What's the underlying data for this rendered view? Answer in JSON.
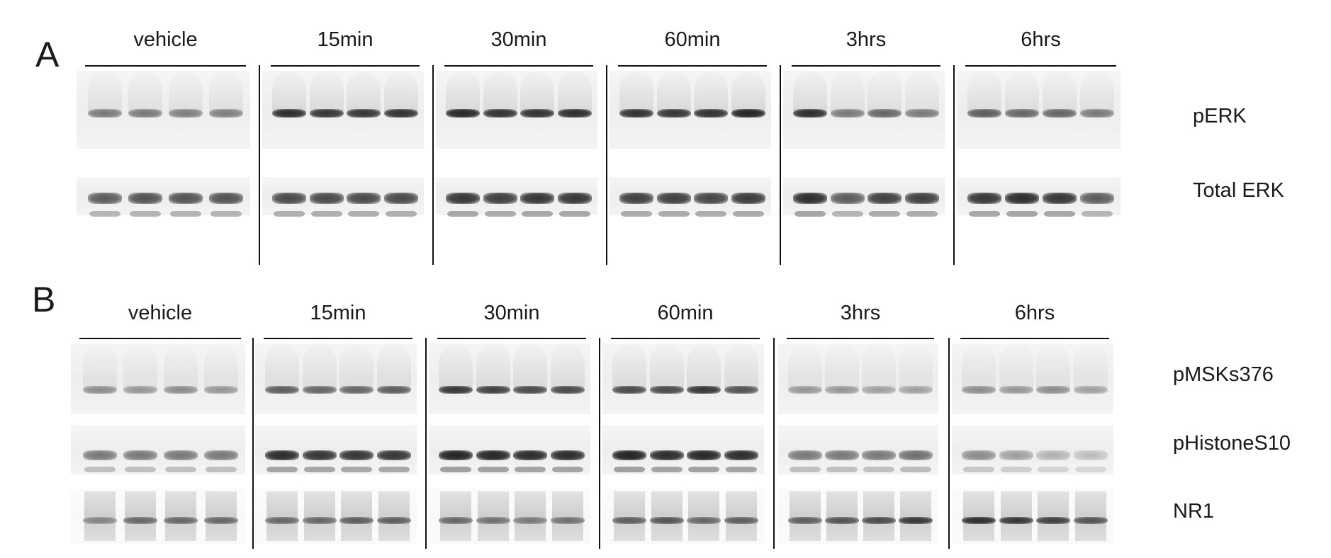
{
  "panels": [
    {
      "letter": "A",
      "groups": [
        "vehicle",
        "15min",
        "30min",
        "60min",
        "3hrs",
        "6hrs"
      ],
      "rows": [
        {
          "label": "pERK",
          "intensity": [
            [
              0.45,
              0.45,
              0.42,
              0.42
            ],
            [
              0.85,
              0.8,
              0.8,
              0.82
            ],
            [
              0.88,
              0.82,
              0.82,
              0.85
            ],
            [
              0.82,
              0.8,
              0.82,
              0.9
            ],
            [
              0.85,
              0.45,
              0.55,
              0.45
            ],
            [
              0.6,
              0.55,
              0.55,
              0.45
            ]
          ]
        },
        {
          "label": "Total ERK",
          "intensity": [
            [
              0.6,
              0.65,
              0.65,
              0.65
            ],
            [
              0.7,
              0.7,
              0.7,
              0.7
            ],
            [
              0.8,
              0.75,
              0.8,
              0.8
            ],
            [
              0.75,
              0.75,
              0.72,
              0.78
            ],
            [
              0.85,
              0.6,
              0.75,
              0.75
            ],
            [
              0.8,
              0.85,
              0.8,
              0.6
            ]
          ]
        }
      ]
    },
    {
      "letter": "B",
      "groups": [
        "vehicle",
        "15min",
        "30min",
        "60min",
        "3hrs",
        "6hrs"
      ],
      "rows": [
        {
          "label": "pMSKs376",
          "intensity": [
            [
              0.35,
              0.3,
              0.35,
              0.3
            ],
            [
              0.6,
              0.55,
              0.55,
              0.6
            ],
            [
              0.8,
              0.75,
              0.7,
              0.7
            ],
            [
              0.7,
              0.7,
              0.8,
              0.65
            ],
            [
              0.3,
              0.3,
              0.25,
              0.25
            ],
            [
              0.35,
              0.3,
              0.35,
              0.25
            ]
          ]
        },
        {
          "label": "pHistoneS10",
          "intensity": [
            [
              0.45,
              0.45,
              0.45,
              0.45
            ],
            [
              0.85,
              0.8,
              0.8,
              0.8
            ],
            [
              0.9,
              0.88,
              0.85,
              0.85
            ],
            [
              0.9,
              0.85,
              0.88,
              0.85
            ],
            [
              0.45,
              0.45,
              0.45,
              0.5
            ],
            [
              0.35,
              0.25,
              0.15,
              0.1
            ]
          ]
        },
        {
          "label": "NR1",
          "intensity": [
            [
              0.4,
              0.55,
              0.55,
              0.55
            ],
            [
              0.55,
              0.55,
              0.6,
              0.6
            ],
            [
              0.55,
              0.5,
              0.45,
              0.5
            ],
            [
              0.6,
              0.65,
              0.55,
              0.6
            ],
            [
              0.6,
              0.65,
              0.7,
              0.8
            ],
            [
              0.85,
              0.8,
              0.75,
              0.65
            ]
          ]
        }
      ]
    }
  ]
}
